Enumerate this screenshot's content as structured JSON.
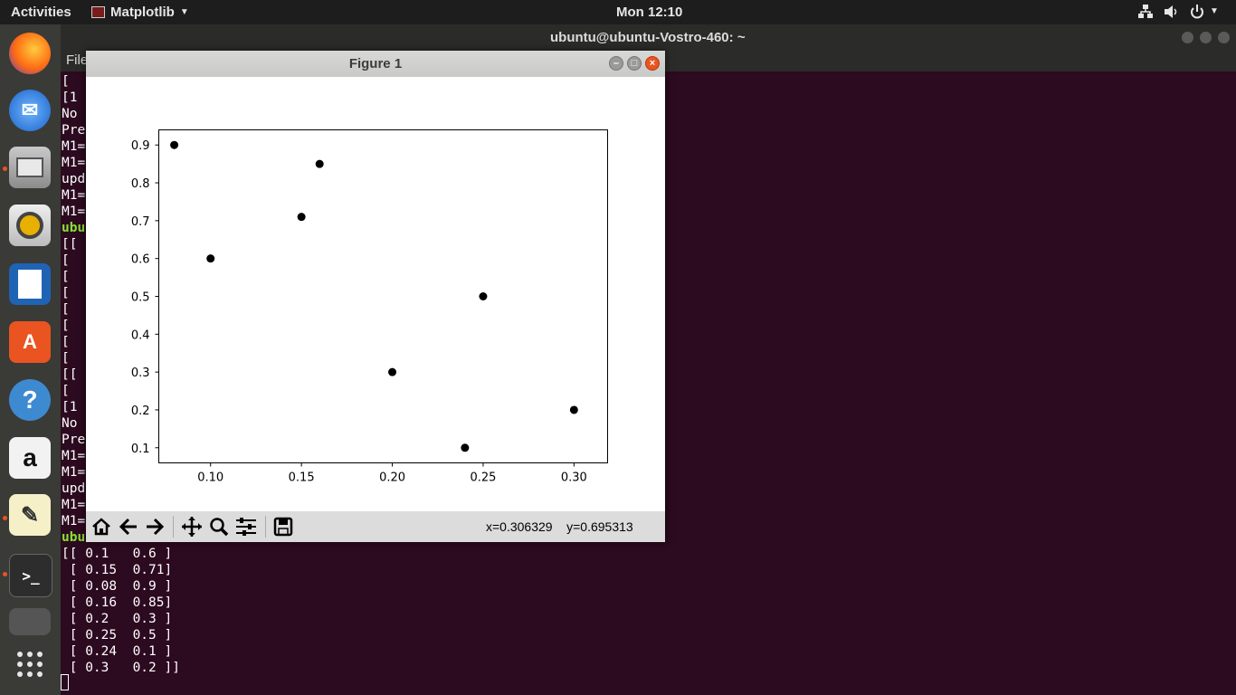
{
  "topbar": {
    "activities": "Activities",
    "app_menu": "Matplotlib",
    "clock": "Mon 12:10"
  },
  "terminal": {
    "title": "ubuntu@ubuntu-Vostro-460: ~",
    "menu_file": "File",
    "lines_partial": [
      "[",
      "[1",
      "No",
      "Pre",
      "M1=",
      "M1=",
      "upd",
      "M1=",
      "M1=",
      "ubu",
      "[[",
      "[",
      "[",
      "[",
      "[",
      "[",
      "[",
      "[",
      "[[",
      "[",
      "[1",
      "No",
      "Pre",
      "M1=",
      "M1=",
      "upd",
      "M1=",
      "M1=",
      "ubu"
    ],
    "output_lines": [
      "[[ 0.1   0.6 ]",
      " [ 0.15  0.71]",
      " [ 0.08  0.9 ]",
      " [ 0.16  0.85]",
      " [ 0.2   0.3 ]",
      " [ 0.25  0.5 ]",
      " [ 0.24  0.1 ]",
      " [ 0.3   0.2 ]]"
    ]
  },
  "figure": {
    "title": "Figure 1",
    "coords_text": "x=0.306329    y=0.695313",
    "toolbar": {
      "home": "home-icon",
      "back": "arrow-left-icon",
      "forward": "arrow-right-icon",
      "pan": "move-icon",
      "zoom": "magnifier-icon",
      "configure": "sliders-icon",
      "save": "save-icon"
    }
  },
  "chart_data": {
    "type": "scatter",
    "x": [
      0.1,
      0.15,
      0.08,
      0.16,
      0.2,
      0.25,
      0.24,
      0.3
    ],
    "y": [
      0.6,
      0.71,
      0.9,
      0.85,
      0.3,
      0.5,
      0.1,
      0.2
    ],
    "xlim": [
      0.0715,
      0.3185
    ],
    "ylim": [
      0.06,
      0.94
    ],
    "xticks": [
      "0.10",
      "0.15",
      "0.20",
      "0.25",
      "0.30"
    ],
    "yticks": [
      "0.1",
      "0.2",
      "0.3",
      "0.4",
      "0.5",
      "0.6",
      "0.7",
      "0.8",
      "0.9"
    ],
    "marker_color": "#000000",
    "grid": false
  },
  "colors": {
    "terminal_bg": "#2c0a1f",
    "prompt_green": "#8ae234",
    "accent_orange": "#e95420"
  }
}
